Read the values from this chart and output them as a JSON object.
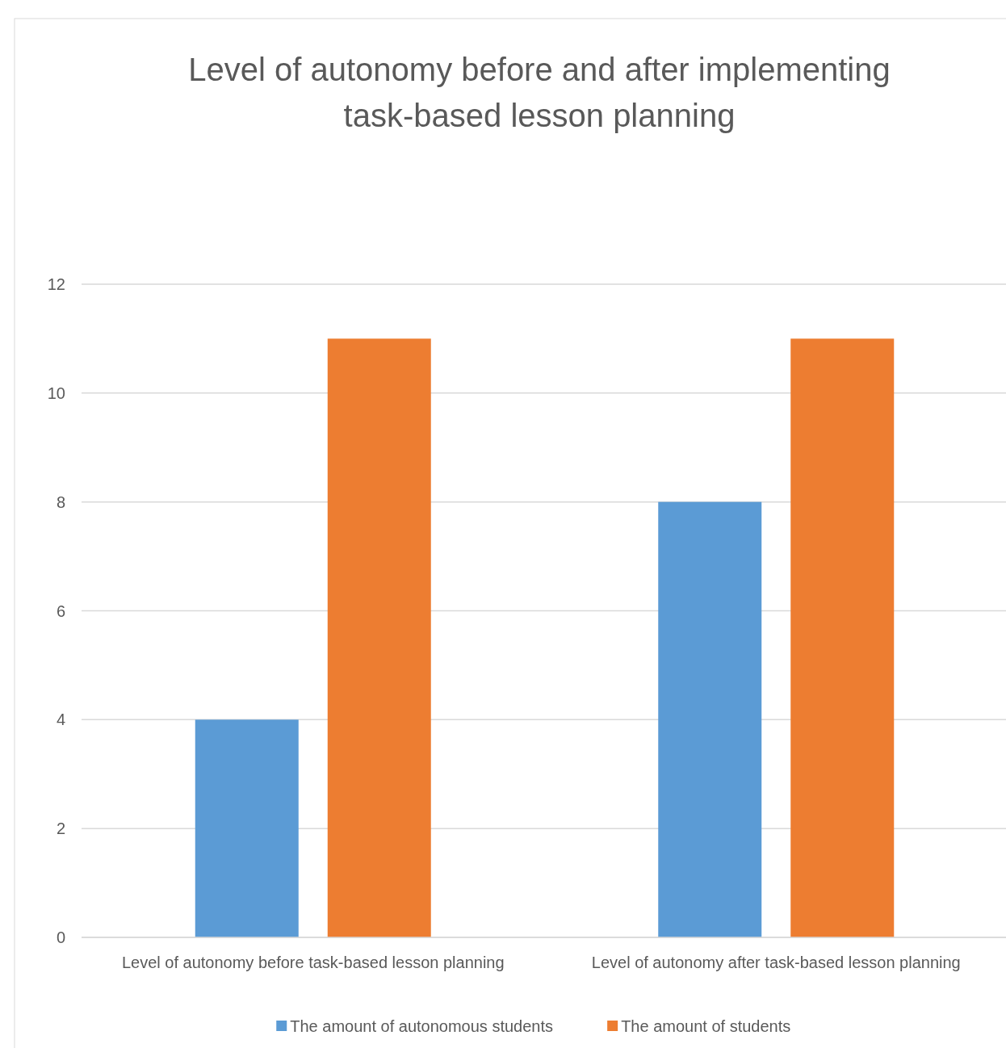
{
  "chart_data": {
    "type": "bar",
    "title": "Level of autonomy before and after implementing task-based lesson planning",
    "categories": [
      "Level of autonomy before task-based lesson planning",
      "Level of autonomy after task-based lesson planning"
    ],
    "series": [
      {
        "name": "The amount of autonomous students",
        "color": "#5b9bd5",
        "values": [
          4,
          8
        ]
      },
      {
        "name": "The amount of students",
        "color": "#ed7d31",
        "values": [
          11,
          11
        ]
      }
    ],
    "ylim": [
      0,
      12
    ],
    "yticks": [
      0,
      2,
      4,
      6,
      8,
      10,
      12
    ],
    "grid": "y",
    "legend": "bottom"
  }
}
